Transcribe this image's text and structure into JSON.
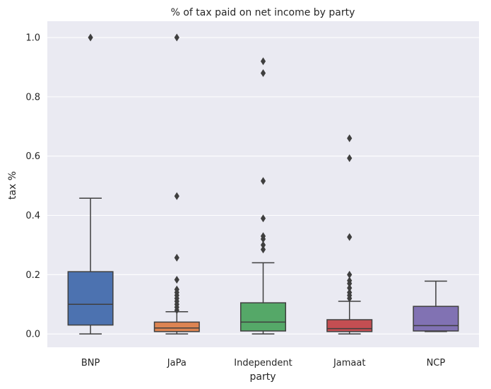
{
  "chart_data": {
    "type": "box",
    "title": "% of tax paid on net income by party",
    "xlabel": "party",
    "ylabel": "tax %",
    "ylim": [
      -0.045,
      1.055
    ],
    "yticks": [
      0.0,
      0.2,
      0.4,
      0.6,
      0.8,
      1.0
    ],
    "ytick_labels": [
      "0.0",
      "0.2",
      "0.4",
      "0.6",
      "0.8",
      "1.0"
    ],
    "grid": true,
    "categories": [
      "BNP",
      "JaPa",
      "Independent",
      "Jamaat",
      "NCP"
    ],
    "boxes": [
      {
        "category": "BNP",
        "color": "#4c72b0",
        "whisker_low": 0.0,
        "q1": 0.03,
        "median": 0.1,
        "q3": 0.21,
        "whisker_high": 0.458,
        "outliers": [
          1.0
        ]
      },
      {
        "category": "JaPa",
        "color": "#dd8452",
        "whisker_low": 0.0,
        "q1": 0.008,
        "median": 0.02,
        "q3": 0.04,
        "whisker_high": 0.075,
        "outliers": [
          1.0,
          0.465,
          0.257,
          0.183,
          0.15,
          0.14,
          0.13,
          0.12,
          0.11,
          0.1,
          0.09,
          0.08
        ]
      },
      {
        "category": "Independent",
        "color": "#55a868",
        "whisker_low": 0.0,
        "q1": 0.01,
        "median": 0.04,
        "q3": 0.105,
        "whisker_high": 0.24,
        "outliers": [
          0.92,
          0.88,
          0.516,
          0.39,
          0.33,
          0.32,
          0.3,
          0.285
        ]
      },
      {
        "category": "Jamaat",
        "color": "#c44e52",
        "whisker_low": 0.0,
        "q1": 0.008,
        "median": 0.018,
        "q3": 0.048,
        "whisker_high": 0.11,
        "outliers": [
          0.66,
          0.593,
          0.327,
          0.2,
          0.18,
          0.17,
          0.155,
          0.14,
          0.13,
          0.12
        ]
      },
      {
        "category": "NCP",
        "color": "#8172b3",
        "whisker_low": 0.008,
        "q1": 0.01,
        "median": 0.028,
        "q3": 0.093,
        "whisker_high": 0.178,
        "outliers": []
      }
    ]
  }
}
